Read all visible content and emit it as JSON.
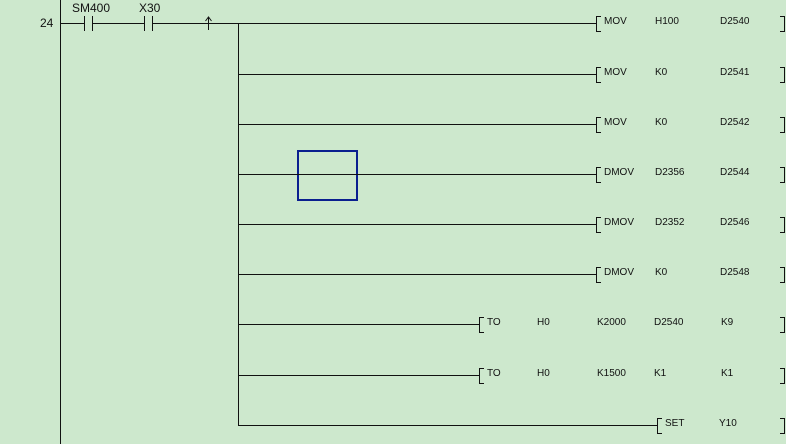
{
  "rung": {
    "step_number": "24",
    "contacts": [
      {
        "device": "SM400",
        "type": "normally-open"
      },
      {
        "device": "X30",
        "type": "normally-open"
      }
    ],
    "edge": "rising-edge-pulse"
  },
  "instructions": [
    {
      "op": "MOV",
      "args": [
        "H100",
        "D2540"
      ]
    },
    {
      "op": "MOV",
      "args": [
        "K0",
        "D2541"
      ]
    },
    {
      "op": "MOV",
      "args": [
        "K0",
        "D2542"
      ]
    },
    {
      "op": "DMOV",
      "args": [
        "D2356",
        "D2544"
      ]
    },
    {
      "op": "DMOV",
      "args": [
        "D2352",
        "D2546"
      ]
    },
    {
      "op": "DMOV",
      "args": [
        "K0",
        "D2548"
      ]
    },
    {
      "op": "TO",
      "args": [
        "H0",
        "K2000",
        "D2540",
        "K9"
      ]
    },
    {
      "op": "TO",
      "args": [
        "H0",
        "K1500",
        "K1",
        "K1"
      ]
    },
    {
      "op": "SET",
      "args": [
        "Y10"
      ]
    }
  ],
  "colors": {
    "background": "#cde8cd",
    "cursor": "#0a1f8f",
    "line": "#111111"
  }
}
